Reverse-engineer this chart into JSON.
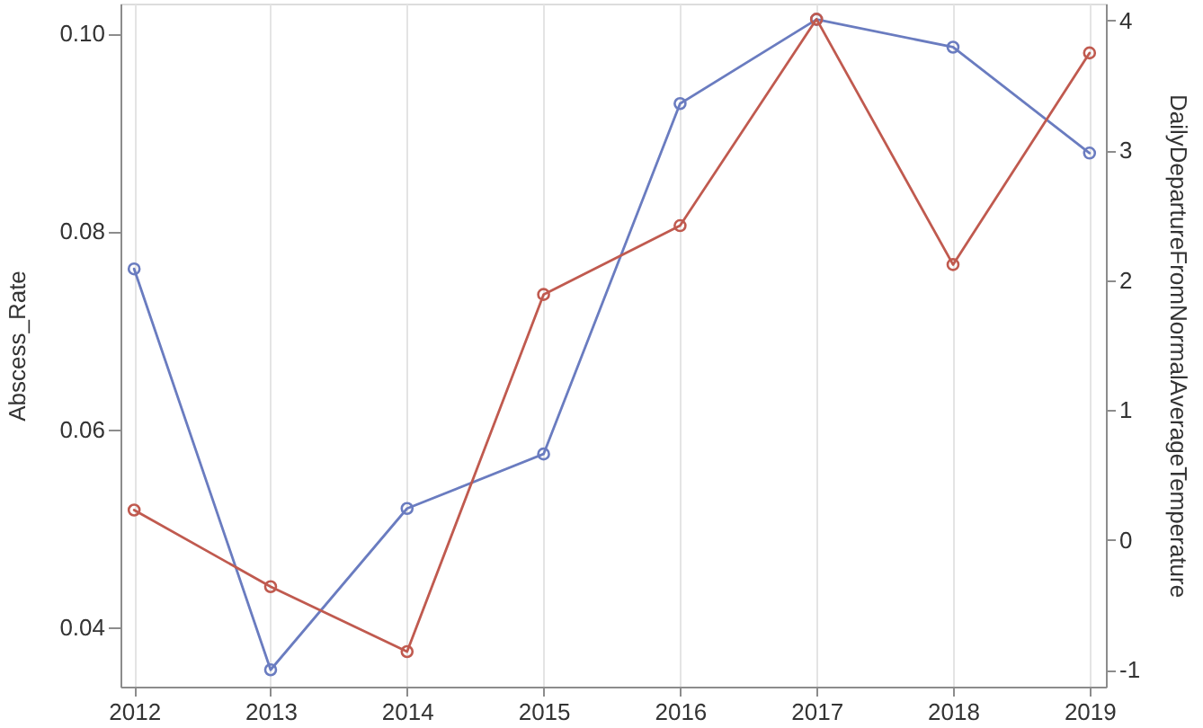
{
  "chart_data": {
    "type": "line",
    "ylabel": "Abscess_Rate",
    "y2label": "DailyDepartureFromNormalAverageTemperature",
    "x": [
      2012,
      2013,
      2014,
      2015,
      2016,
      2017,
      2018,
      2019
    ],
    "xlim": [
      2011.9,
      2019.12
    ],
    "xticks": [
      2012,
      2013,
      2014,
      2015,
      2016,
      2017,
      2018,
      2019
    ],
    "ylim": [
      0.034,
      0.103
    ],
    "yticks": [
      0.04,
      0.06,
      0.08,
      {
        "value": 0.1,
        "label": "0.10"
      }
    ],
    "y2lim": [
      -1.13,
      4.13
    ],
    "y2ticks": [
      -1,
      0,
      1,
      2,
      3,
      4
    ],
    "series": [
      {
        "color": "#6a7cc0",
        "values": [
          0.0762,
          0.0357,
          0.052,
          0.0575,
          0.0929,
          0.1014,
          0.0986,
          0.0879
        ]
      },
      {
        "color": "#c05a4f",
        "axis": "y2",
        "values": [
          0.23,
          -0.36,
          -0.86,
          1.89,
          2.42,
          4.01,
          2.12,
          3.75
        ]
      }
    ],
    "grid": "x",
    "marker": "circle",
    "line_style": "solid"
  }
}
